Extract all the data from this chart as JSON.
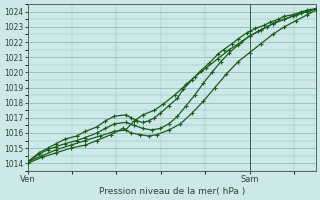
{
  "title": "Pression niveau de la mer( hPa )",
  "background_color": "#cce8e8",
  "grid_color": "#99bbbb",
  "line_color": "#1a5c1a",
  "marker_color": "#1a5c1a",
  "vline_color": "#336633",
  "ylim": [
    1013.5,
    1024.5
  ],
  "yticks": [
    1014,
    1015,
    1016,
    1017,
    1018,
    1019,
    1020,
    1021,
    1022,
    1023,
    1024
  ],
  "xlabel_sam": 0.77,
  "series": [
    {
      "x": [
        0.0,
        0.04,
        0.07,
        0.1,
        0.13,
        0.17,
        0.2,
        0.24,
        0.27,
        0.3,
        0.34,
        0.36,
        0.38,
        0.4,
        0.42,
        0.44,
        0.46,
        0.49,
        0.52,
        0.54,
        0.57,
        0.6,
        0.63,
        0.66,
        0.68,
        0.71,
        0.73,
        0.76,
        0.77,
        0.79,
        0.82,
        0.84,
        0.87,
        0.89,
        0.92,
        0.95,
        0.97,
        1.0
      ],
      "y": [
        1014.1,
        1014.7,
        1015.0,
        1015.3,
        1015.6,
        1015.8,
        1016.1,
        1016.4,
        1016.8,
        1017.1,
        1017.2,
        1017.0,
        1016.8,
        1016.7,
        1016.8,
        1017.0,
        1017.3,
        1017.8,
        1018.3,
        1018.9,
        1019.5,
        1020.1,
        1020.6,
        1021.2,
        1021.5,
        1021.9,
        1022.2,
        1022.6,
        1022.7,
        1022.9,
        1023.1,
        1023.3,
        1023.5,
        1023.7,
        1023.8,
        1024.0,
        1024.1,
        1024.2
      ]
    },
    {
      "x": [
        0.0,
        0.04,
        0.07,
        0.1,
        0.13,
        0.17,
        0.2,
        0.24,
        0.27,
        0.3,
        0.34,
        0.37,
        0.4,
        0.43,
        0.46,
        0.49,
        0.52,
        0.55,
        0.58,
        0.61,
        0.64,
        0.67,
        0.7,
        0.73,
        0.77,
        0.8,
        0.83,
        0.86,
        0.89,
        0.92,
        0.95,
        0.98,
        1.0
      ],
      "y": [
        1014.1,
        1014.6,
        1014.9,
        1015.1,
        1015.3,
        1015.5,
        1015.7,
        1016.0,
        1016.3,
        1016.6,
        1016.7,
        1016.5,
        1016.3,
        1016.2,
        1016.3,
        1016.6,
        1017.1,
        1017.8,
        1018.5,
        1019.3,
        1020.0,
        1020.7,
        1021.3,
        1021.8,
        1022.4,
        1022.7,
        1023.0,
        1023.3,
        1023.5,
        1023.7,
        1023.9,
        1024.1,
        1024.2
      ]
    },
    {
      "x": [
        0.0,
        0.05,
        0.1,
        0.15,
        0.2,
        0.25,
        0.3,
        0.34,
        0.37,
        0.4,
        0.44,
        0.47,
        0.51,
        0.55,
        0.58,
        0.62,
        0.66,
        0.7,
        0.74,
        0.77,
        0.81,
        0.85,
        0.89,
        0.93,
        0.97,
        1.0
      ],
      "y": [
        1014.1,
        1014.5,
        1014.9,
        1015.2,
        1015.5,
        1015.8,
        1016.1,
        1016.2,
        1016.8,
        1017.2,
        1017.5,
        1017.9,
        1018.5,
        1019.2,
        1019.7,
        1020.3,
        1020.9,
        1021.5,
        1022.0,
        1022.4,
        1022.8,
        1023.2,
        1023.5,
        1023.8,
        1024.0,
        1024.2
      ]
    },
    {
      "x": [
        0.0,
        0.05,
        0.1,
        0.15,
        0.2,
        0.24,
        0.29,
        0.33,
        0.36,
        0.39,
        0.42,
        0.45,
        0.49,
        0.53,
        0.57,
        0.61,
        0.65,
        0.69,
        0.73,
        0.77,
        0.81,
        0.85,
        0.89,
        0.93,
        0.97,
        1.0
      ],
      "y": [
        1014.0,
        1014.4,
        1014.7,
        1015.0,
        1015.2,
        1015.5,
        1015.9,
        1016.3,
        1016.0,
        1015.9,
        1015.8,
        1015.9,
        1016.2,
        1016.6,
        1017.3,
        1018.1,
        1019.0,
        1019.9,
        1020.7,
        1021.3,
        1021.9,
        1022.5,
        1023.0,
        1023.4,
        1023.8,
        1024.1
      ]
    }
  ]
}
